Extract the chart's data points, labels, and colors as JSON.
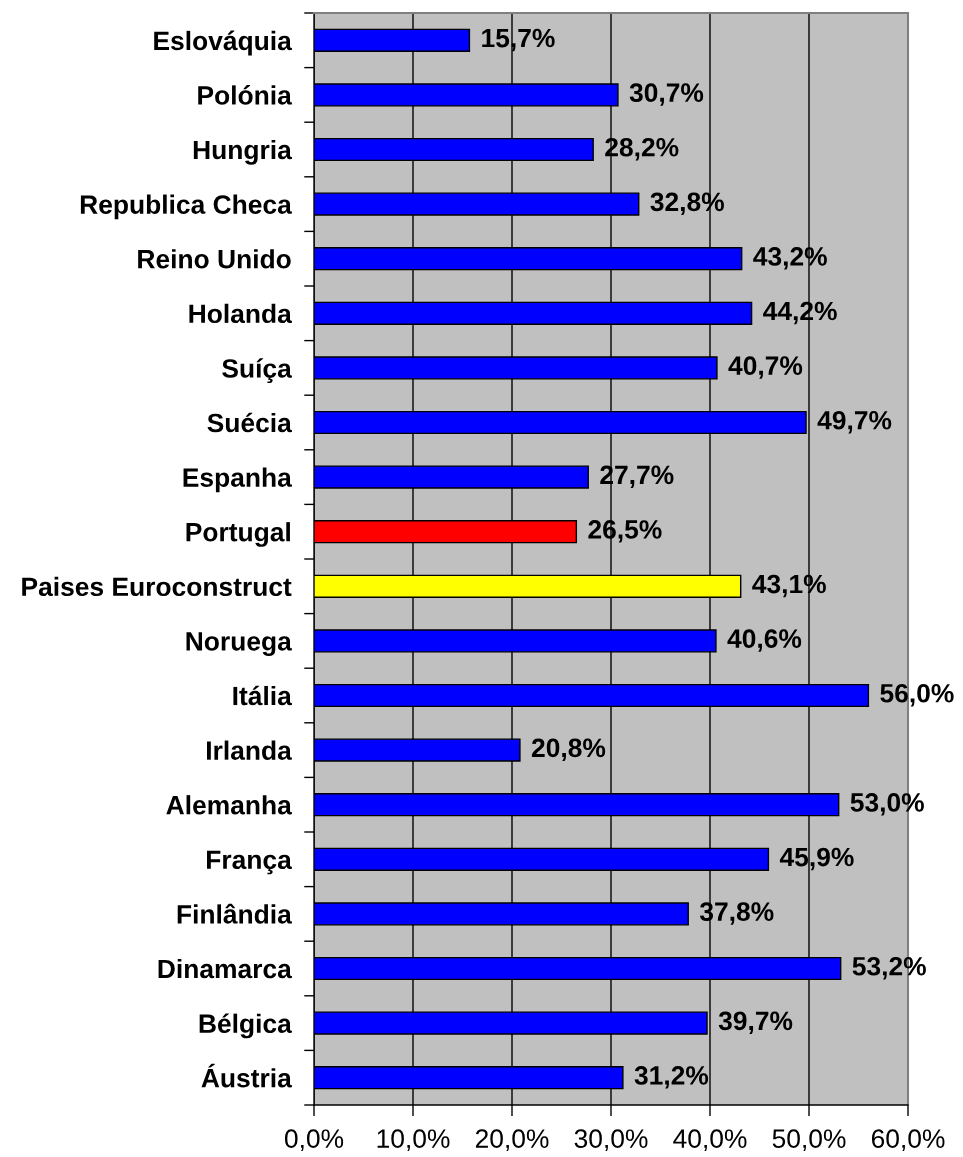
{
  "chart_data": {
    "type": "bar",
    "orientation": "horizontal",
    "categories": [
      "Eslováquia",
      "Polónia",
      "Hungria",
      "Republica Checa",
      "Reino Unido",
      "Holanda",
      "Suíça",
      "Suécia",
      "Espanha",
      "Portugal",
      "Paises Euroconstruct",
      "Noruega",
      "Itália",
      "Irlanda",
      "Alemanha",
      "França",
      "Finlândia",
      "Dinamarca",
      "Bélgica",
      "Áustria"
    ],
    "values": [
      15.7,
      30.7,
      28.2,
      32.8,
      43.2,
      44.2,
      40.7,
      49.7,
      27.7,
      26.5,
      43.1,
      40.6,
      56.0,
      20.8,
      53.0,
      45.9,
      37.8,
      53.2,
      39.7,
      31.2
    ],
    "colors": [
      "#0000ff",
      "#0000ff",
      "#0000ff",
      "#0000ff",
      "#0000ff",
      "#0000ff",
      "#0000ff",
      "#0000ff",
      "#0000ff",
      "#ff0000",
      "#ffff00",
      "#0000ff",
      "#0000ff",
      "#0000ff",
      "#0000ff",
      "#0000ff",
      "#0000ff",
      "#0000ff",
      "#0000ff",
      "#0000ff"
    ],
    "value_labels": [
      "15,7%",
      "30,7%",
      "28,2%",
      "32,8%",
      "43,2%",
      "44,2%",
      "40,7%",
      "49,7%",
      "27,7%",
      "26,5%",
      "43,1%",
      "40,6%",
      "56,0%",
      "20,8%",
      "53,0%",
      "45,9%",
      "37,8%",
      "53,2%",
      "39,7%",
      "31,2%"
    ],
    "xlim": [
      0,
      60
    ],
    "xticks": [
      {
        "value": 0,
        "label": "0,0%"
      },
      {
        "value": 10,
        "label": "10,0%"
      },
      {
        "value": 20,
        "label": "20,0%"
      },
      {
        "value": 30,
        "label": "30,0%"
      },
      {
        "value": 40,
        "label": "40,0%"
      },
      {
        "value": 50,
        "label": "50,0%"
      },
      {
        "value": 60,
        "label": "60,0%"
      }
    ],
    "grid": "x"
  }
}
